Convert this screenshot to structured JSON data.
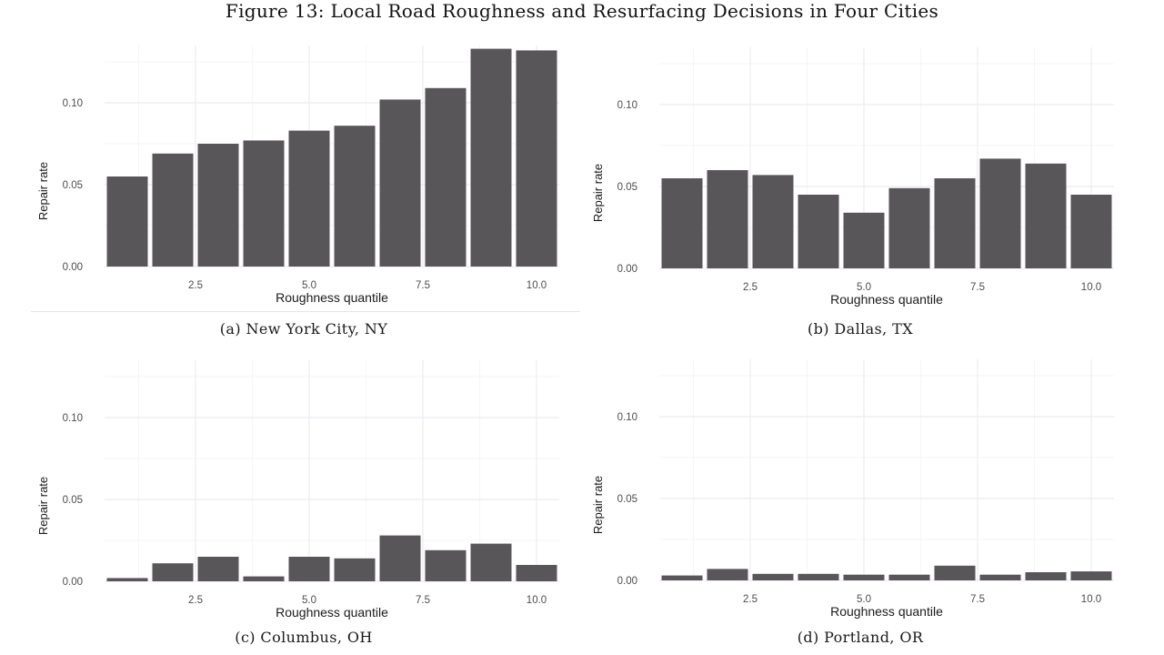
{
  "figure": {
    "title": "Figure 13: Local Road Roughness and Resurfacing Decisions in Four Cities"
  },
  "colors": {
    "bar": "#595659",
    "grid_major": "#ececf0",
    "grid_minor": "#f6f6f8"
  },
  "chart_data": [
    {
      "type": "bar",
      "caption": "(a) New York City, NY",
      "xlabel": "Roughness quantile",
      "ylabel": "Repair rate",
      "x": [
        1,
        2,
        3,
        4,
        5,
        6,
        7,
        8,
        9,
        10
      ],
      "values": [
        0.055,
        0.069,
        0.075,
        0.077,
        0.083,
        0.086,
        0.102,
        0.109,
        0.133,
        0.132
      ],
      "xlim": [
        0.5,
        10.5
      ],
      "ylim": [
        0,
        0.135
      ],
      "xticks": [
        2.5,
        5.0,
        7.5,
        10.0
      ],
      "xtick_labels": [
        "2.5",
        "5.0",
        "7.5",
        "10.0"
      ],
      "yticks": [
        0.0,
        0.05,
        0.1
      ],
      "ytick_labels": [
        "0.00",
        "0.05",
        "0.10"
      ],
      "grid": true
    },
    {
      "type": "bar",
      "caption": "(b) Dallas, TX",
      "xlabel": "Roughness quantile",
      "ylabel": "Repair rate",
      "x": [
        1,
        2,
        3,
        4,
        5,
        6,
        7,
        8,
        9,
        10
      ],
      "values": [
        0.055,
        0.06,
        0.057,
        0.045,
        0.034,
        0.049,
        0.055,
        0.067,
        0.064,
        0.045
      ],
      "xlim": [
        0.5,
        10.5
      ],
      "ylim": [
        0,
        0.135
      ],
      "xticks": [
        2.5,
        5.0,
        7.5,
        10.0
      ],
      "xtick_labels": [
        "2.5",
        "5.0",
        "7.5",
        "10.0"
      ],
      "yticks": [
        0.0,
        0.05,
        0.1
      ],
      "ytick_labels": [
        "0.00",
        "0.05",
        "0.10"
      ],
      "grid": true
    },
    {
      "type": "bar",
      "caption": "(c) Columbus, OH",
      "xlabel": "Roughness quantile",
      "ylabel": "Repair rate",
      "x": [
        1,
        2,
        3,
        4,
        5,
        6,
        7,
        8,
        9,
        10
      ],
      "values": [
        0.002,
        0.011,
        0.015,
        0.003,
        0.015,
        0.014,
        0.028,
        0.019,
        0.023,
        0.01
      ],
      "xlim": [
        0.5,
        10.5
      ],
      "ylim": [
        0,
        0.135
      ],
      "xticks": [
        2.5,
        5.0,
        7.5,
        10.0
      ],
      "xtick_labels": [
        "2.5",
        "5.0",
        "7.5",
        "10.0"
      ],
      "yticks": [
        0.0,
        0.05,
        0.1
      ],
      "ytick_labels": [
        "0.00",
        "0.05",
        "0.10"
      ],
      "grid": true
    },
    {
      "type": "bar",
      "caption": "(d) Portland, OR",
      "xlabel": "Roughness quantile",
      "ylabel": "Repair rate",
      "x": [
        1,
        2,
        3,
        4,
        5,
        6,
        7,
        8,
        9,
        10
      ],
      "values": [
        0.003,
        0.007,
        0.004,
        0.004,
        0.0035,
        0.0035,
        0.009,
        0.0035,
        0.005,
        0.0055
      ],
      "xlim": [
        0.5,
        10.5
      ],
      "ylim": [
        0,
        0.135
      ],
      "xticks": [
        2.5,
        5.0,
        7.5,
        10.0
      ],
      "xtick_labels": [
        "2.5",
        "5.0",
        "7.5",
        "10.0"
      ],
      "yticks": [
        0.0,
        0.05,
        0.1
      ],
      "ytick_labels": [
        "0.00",
        "0.05",
        "0.10"
      ],
      "grid": true
    }
  ]
}
